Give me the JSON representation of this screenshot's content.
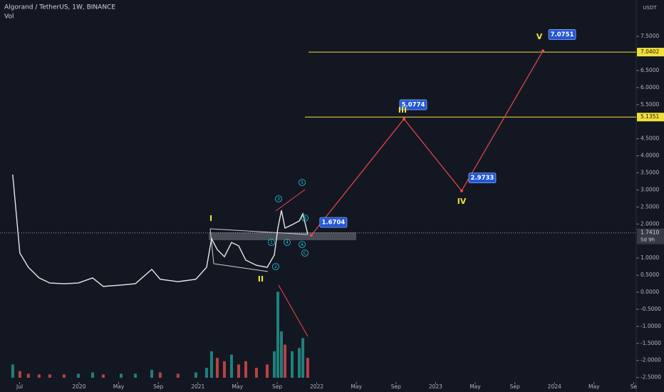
{
  "chart_data": {
    "type": "line",
    "title": "Algorand / TetherUS, 1W, BINANCE",
    "subtitle": "Vol",
    "y_unit": "USDT",
    "xlim": [
      2019.335,
      2024.688
    ],
    "xticks": [
      {
        "value": 2019.5,
        "label": "Jul"
      },
      {
        "value": 2020,
        "label": "2020"
      },
      {
        "value": 2020.333,
        "label": "May"
      },
      {
        "value": 2020.667,
        "label": "Sep"
      },
      {
        "value": 2021,
        "label": "2021"
      },
      {
        "value": 2021.333,
        "label": "May"
      },
      {
        "value": 2021.667,
        "label": "Sep"
      },
      {
        "value": 2022,
        "label": "2022"
      },
      {
        "value": 2022.333,
        "label": "May"
      },
      {
        "value": 2022.667,
        "label": "Sep"
      },
      {
        "value": 2023,
        "label": "2023"
      },
      {
        "value": 2023.333,
        "label": "May"
      },
      {
        "value": 2023.667,
        "label": "Sep"
      },
      {
        "value": 2024,
        "label": "2024"
      },
      {
        "value": 2024.333,
        "label": "May"
      },
      {
        "value": 2024.667,
        "label": "Se"
      }
    ],
    "ylim": [
      -2.925,
      8.567
    ],
    "yticks": [
      {
        "value": 7.5,
        "label": "7.5000"
      },
      {
        "value": 6.5,
        "label": "6.5000"
      },
      {
        "value": 6,
        "label": "6.0000"
      },
      {
        "value": 5.5,
        "label": "5.5000"
      },
      {
        "value": 4.5,
        "label": "4.5000"
      },
      {
        "value": 4,
        "label": "4.0000"
      },
      {
        "value": 3.5,
        "label": "3.5000"
      },
      {
        "value": 3,
        "label": "3.0000"
      },
      {
        "value": 2.5,
        "label": "2.5000"
      },
      {
        "value": 2,
        "label": "2.0000"
      },
      {
        "value": 1,
        "label": "1.0000"
      },
      {
        "value": 0.5,
        "label": "0.5000"
      },
      {
        "value": 0,
        "label": "0.0000"
      },
      {
        "value": -0.5,
        "label": "-0.5000"
      },
      {
        "value": -1,
        "label": "-1.0000"
      },
      {
        "value": -1.5,
        "label": "-1.5000"
      },
      {
        "value": -2,
        "label": "-2.0000"
      },
      {
        "value": -2.5,
        "label": "-2.5000"
      }
    ],
    "price": {
      "color": "#e8e8e8",
      "x": [
        2019.442,
        2019.502,
        2019.574,
        2019.664,
        2019.754,
        2019.874,
        2019.994,
        2020.114,
        2020.204,
        2020.354,
        2020.474,
        2020.612,
        2020.683,
        2020.833,
        2020.983,
        2021.073,
        2021.115,
        2021.163,
        2021.223,
        2021.283,
        2021.343,
        2021.403,
        2021.493,
        2021.583,
        2021.643,
        2021.673,
        2021.703,
        2021.733,
        2021.793,
        2021.853,
        2021.883,
        2021.924
      ],
      "values": [
        3.45,
        1.15,
        0.73,
        0.42,
        0.27,
        0.25,
        0.27,
        0.42,
        0.17,
        0.21,
        0.25,
        0.67,
        0.38,
        0.31,
        0.38,
        0.73,
        1.57,
        1.25,
        1.04,
        1.46,
        1.36,
        0.94,
        0.79,
        0.73,
        1.09,
        1.88,
        2.4,
        1.88,
        1.98,
        2.09,
        2.3,
        1.71
      ]
    },
    "volume": {
      "up_color": "#26a69a",
      "down_color": "#ef5350",
      "vlim": [
        0,
        140
      ],
      "values": [
        20,
        10,
        6,
        5,
        5,
        5,
        6,
        8,
        5,
        6,
        6,
        12,
        8,
        6,
        8,
        15,
        40,
        30,
        25,
        35,
        20,
        25,
        15,
        20,
        40,
        130,
        70,
        50,
        40,
        45,
        60,
        30
      ]
    },
    "current_price": {
      "value": 1.741,
      "label": "1.7410"
    },
    "countdown": "5d 9h",
    "levels": [
      7.0402,
      5.1351
    ],
    "level_color": "#f2e03a",
    "projection": {
      "color": "#f0474b",
      "x": [
        2021.954,
        2022.734,
        2023.219,
        2023.903
      ],
      "values": [
        1.6704,
        5.0774,
        2.9733,
        7.0751
      ]
    },
    "wave_labels": [
      "I",
      "II",
      "III",
      "IV",
      "V"
    ],
    "sub_wave_labels": [
      "1",
      "2",
      "3",
      "4",
      "5",
      "A",
      "B",
      "C"
    ]
  }
}
